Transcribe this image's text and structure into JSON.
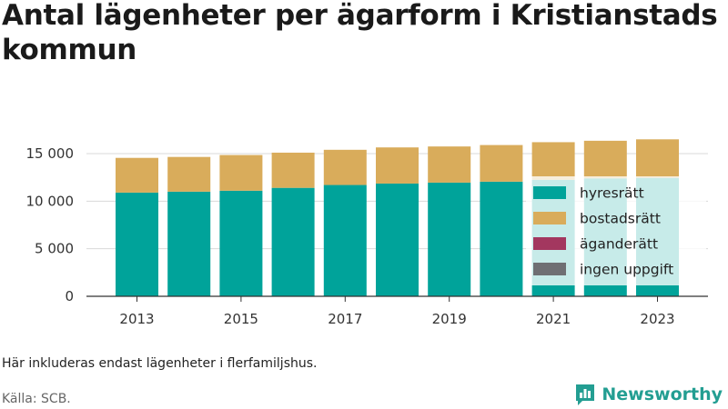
{
  "title": "Antal lägenheter per ägarform i Kristianstads kommun",
  "note": "Här inkluderas endast lägenheter i flerfamiljshus.",
  "source": "Källa: SCB.",
  "brand": {
    "name": "Newsworthy",
    "icon": "bar-chart-logo-icon",
    "color": "#239e92"
  },
  "chart_data": {
    "type": "bar",
    "stacked": true,
    "categories": [
      "2013",
      "2014",
      "2015",
      "2016",
      "2017",
      "2018",
      "2019",
      "2020",
      "2021",
      "2022",
      "2023"
    ],
    "x_tick_labels": [
      "2013",
      "2015",
      "2017",
      "2019",
      "2021",
      "2023"
    ],
    "y_tick_labels": [
      "0",
      "5 000",
      "10 000",
      "15 000"
    ],
    "y_ticks": [
      0,
      5000,
      10000,
      15000
    ],
    "ylim": [
      0,
      18000
    ],
    "grid": true,
    "legend_position": "right",
    "series": [
      {
        "name": "hyresrätt",
        "color": "#00a39a",
        "values": [
          10900,
          11000,
          11100,
          11400,
          11700,
          11850,
          11950,
          12050,
          12250,
          12400,
          12450
        ]
      },
      {
        "name": "bostadsrätt",
        "color": "#d9ac5b",
        "values": [
          3650,
          3650,
          3750,
          3700,
          3700,
          3800,
          3800,
          3850,
          3950,
          3950,
          4050
        ]
      },
      {
        "name": "äganderätt",
        "color": "#a3375f",
        "values": [
          0,
          0,
          0,
          0,
          0,
          0,
          0,
          0,
          0,
          0,
          0
        ]
      },
      {
        "name": "ingen uppgift",
        "color": "#6f6f73",
        "values": [
          0,
          0,
          0,
          0,
          0,
          0,
          0,
          0,
          0,
          0,
          0
        ]
      }
    ]
  }
}
